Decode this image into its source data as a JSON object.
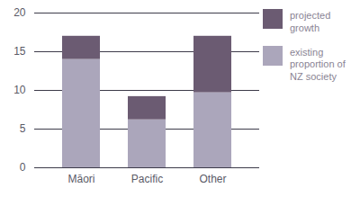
{
  "chart_data": {
    "type": "bar",
    "stacked": true,
    "grid": true,
    "legend": "upper right",
    "categories": [
      "Māori",
      "Pacific",
      "Other"
    ],
    "series": [
      {
        "name": "existing proportion of NZ society",
        "color": "#aba6bb",
        "values": [
          14,
          6.2,
          9.7
        ]
      },
      {
        "name": "projected growth",
        "color": "#6b5b72",
        "values": [
          3,
          3,
          7.3
        ]
      }
    ],
    "ylim": [
      0,
      20
    ],
    "yticks": [
      0,
      5,
      10,
      15,
      20
    ]
  }
}
